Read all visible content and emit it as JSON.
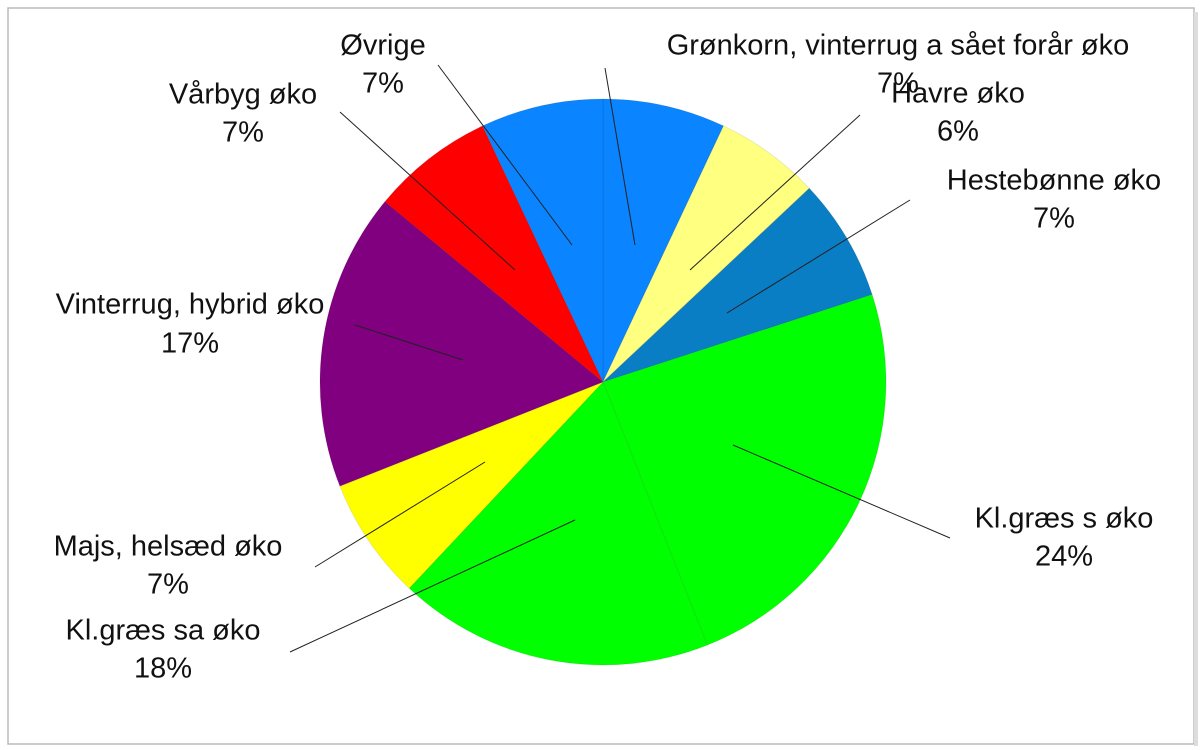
{
  "chart_data": {
    "type": "pie",
    "categories": [
      "Grønkorn, vinterrug a sået forår øko",
      "Havre øko",
      "Hestebønne øko",
      "Kl.græs s øko",
      "Kl.græs sa øko",
      "Majs, helsæd øko",
      "Vinterrug, hybrid øko",
      "Vårbyg øko",
      "Øvrige"
    ],
    "values": [
      7,
      6,
      7,
      24,
      18,
      7,
      17,
      7,
      7
    ],
    "value_labels": [
      "7%",
      "6%",
      "7%",
      "24%",
      "18%",
      "7%",
      "17%",
      "7%",
      "7%"
    ],
    "colors": [
      "#0a84ff",
      "#ffff80",
      "#0a7ec4",
      "#00ff00",
      "#00ff00",
      "#ffff00",
      "#800080",
      "#ff0000",
      "#0a84ff"
    ]
  }
}
